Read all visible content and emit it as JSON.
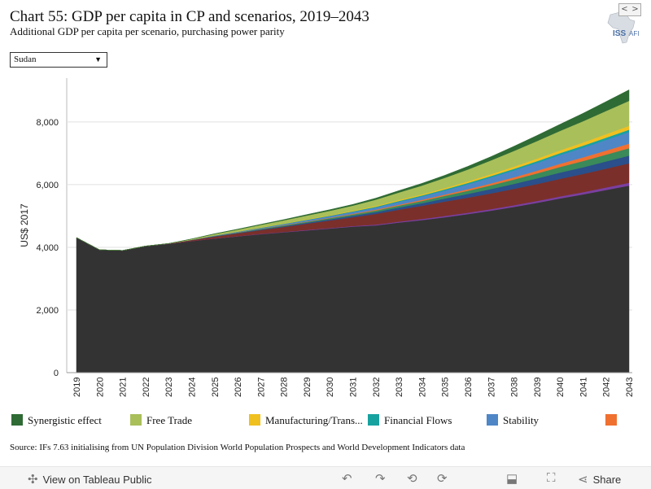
{
  "header": {
    "title": "Chart 55: GDP per capita in CP and scenarios, 2019–2043",
    "subtitle": "Additional GDP per capita per scenario, purchasing power parity"
  },
  "logo": {
    "text": "ISS",
    "suffix": "AFI",
    "icon": "africa-map-icon"
  },
  "filter": {
    "selected": "Sudan"
  },
  "chart_data": {
    "type": "area",
    "stacked": true,
    "x": [
      2019,
      2020,
      2021,
      2022,
      2023,
      2024,
      2025,
      2026,
      2027,
      2028,
      2029,
      2030,
      2031,
      2032,
      2033,
      2034,
      2035,
      2036,
      2037,
      2038,
      2039,
      2040,
      2041,
      2042,
      2043
    ],
    "xlabel": "",
    "ylabel": "US$ 2017",
    "ylim": [
      0,
      9400
    ],
    "yticks": [
      0,
      2000,
      4000,
      6000,
      8000
    ],
    "ytick_labels": [
      "0",
      "2,000",
      "4,000",
      "6,000",
      "8,000"
    ],
    "grid": true,
    "series": [
      {
        "color": "#333333",
        "values": [
          4310,
          3920,
          3900,
          4040,
          4110,
          4200,
          4280,
          4350,
          4420,
          4480,
          4540,
          4600,
          4660,
          4700,
          4790,
          4870,
          4960,
          5060,
          5170,
          5290,
          5420,
          5560,
          5690,
          5830,
          5970
        ]
      },
      {
        "color": "#7b3fa0",
        "values": [
          0,
          0,
          0,
          0,
          0,
          0,
          5,
          5,
          10,
          10,
          15,
          15,
          20,
          25,
          30,
          35,
          40,
          45,
          50,
          55,
          60,
          65,
          70,
          80,
          90
        ]
      },
      {
        "color": "#7a2f2a",
        "values": [
          0,
          0,
          0,
          0,
          10,
          30,
          60,
          90,
          120,
          160,
          200,
          240,
          280,
          340,
          380,
          420,
          460,
          480,
          500,
          520,
          540,
          560,
          580,
          600,
          620
        ]
      },
      {
        "color": "#2a4f8a",
        "values": [
          0,
          0,
          0,
          0,
          0,
          5,
          10,
          15,
          20,
          25,
          30,
          40,
          50,
          60,
          70,
          85,
          100,
          120,
          140,
          160,
          180,
          200,
          215,
          230,
          245
        ]
      },
      {
        "color": "#3a8a5a",
        "values": [
          0,
          0,
          0,
          0,
          0,
          5,
          10,
          15,
          20,
          25,
          30,
          35,
          40,
          50,
          60,
          70,
          85,
          100,
          120,
          140,
          160,
          180,
          200,
          220,
          240
        ]
      },
      {
        "color": "#f07030",
        "values": [
          0,
          0,
          0,
          0,
          0,
          0,
          0,
          5,
          5,
          10,
          10,
          15,
          20,
          25,
          30,
          35,
          40,
          50,
          60,
          70,
          85,
          100,
          115,
          130,
          145
        ]
      },
      {
        "name": "Stability",
        "color": "#4f86c6",
        "values": [
          0,
          0,
          0,
          0,
          0,
          5,
          10,
          15,
          20,
          30,
          40,
          50,
          60,
          70,
          90,
          110,
          130,
          160,
          190,
          220,
          250,
          280,
          310,
          340,
          370
        ]
      },
      {
        "name": "Financial Flows",
        "color": "#17a2a0",
        "values": [
          0,
          0,
          0,
          0,
          0,
          0,
          5,
          5,
          10,
          10,
          15,
          15,
          20,
          25,
          30,
          30,
          35,
          40,
          45,
          50,
          55,
          60,
          65,
          70,
          75
        ]
      },
      {
        "name": "Manufacturing/Trans...",
        "color": "#f0c020",
        "values": [
          0,
          0,
          0,
          0,
          0,
          0,
          5,
          5,
          10,
          10,
          15,
          15,
          20,
          25,
          30,
          35,
          40,
          50,
          60,
          70,
          80,
          90,
          100,
          110,
          120
        ]
      },
      {
        "name": "Free Trade",
        "color": "#a9bf5a",
        "values": [
          0,
          0,
          0,
          0,
          0,
          20,
          40,
          60,
          80,
          100,
          120,
          140,
          160,
          200,
          240,
          280,
          330,
          380,
          440,
          500,
          560,
          620,
          680,
          740,
          800
        ]
      },
      {
        "name": "Synergistic effect",
        "color": "#2f6b34",
        "values": [
          0,
          0,
          0,
          0,
          0,
          5,
          10,
          15,
          20,
          25,
          30,
          35,
          40,
          50,
          60,
          70,
          80,
          100,
          120,
          150,
          180,
          210,
          250,
          300,
          350
        ]
      }
    ]
  },
  "legend": {
    "items": [
      {
        "label": "Synergistic effect",
        "color": "#2f6b34"
      },
      {
        "label": "Free Trade",
        "color": "#a9bf5a"
      },
      {
        "label": "Manufacturing/Trans...",
        "color": "#f0c020"
      },
      {
        "label": "Financial Flows",
        "color": "#17a2a0"
      },
      {
        "label": "Stability",
        "color": "#4f86c6"
      },
      {
        "label": "",
        "color": "#f07030"
      }
    ],
    "prev": "<",
    "next": ">"
  },
  "source": "Source: IFs 7.63 initialising from UN Population Division World Population Prospects and World Development Indicators data",
  "footer": {
    "view_label": "View on Tableau Public",
    "share_label": "Share",
    "icons": [
      "tableau-icon",
      "undo-icon",
      "redo-icon",
      "revert-icon",
      "refresh-icon",
      "download-icon",
      "fullscreen-icon",
      "share-icon"
    ]
  }
}
